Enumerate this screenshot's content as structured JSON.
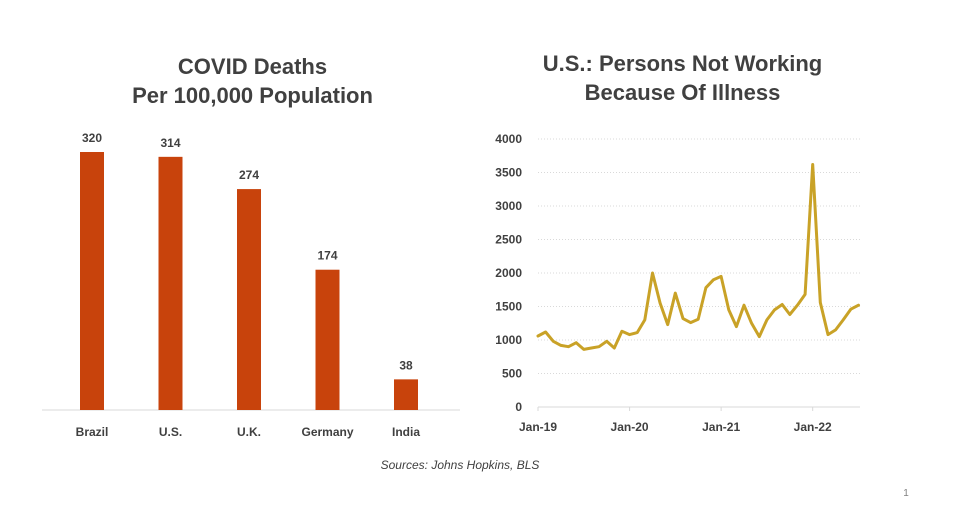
{
  "chart_data": [
    {
      "type": "bar",
      "title": "COVID Deaths Per 100,000 Population",
      "title_lines": [
        "COVID Deaths",
        "Per 100,000 Population"
      ],
      "categories": [
        "Brazil",
        "U.S.",
        "U.K.",
        "Germany",
        "India"
      ],
      "values": [
        320,
        314,
        274,
        174,
        38
      ],
      "data_labels": [
        "320",
        "314",
        "274",
        "174",
        "38"
      ],
      "xlabel": "",
      "ylabel": "",
      "ylim": [
        0,
        320
      ],
      "grid": false,
      "color": "#C8430C"
    },
    {
      "type": "line",
      "title": "U.S.: Persons Not Working Because Of Illness",
      "title_lines": [
        "U.S.: Persons Not Working",
        "Because Of Illness"
      ],
      "x": [
        "Jan-19",
        "Feb-19",
        "Mar-19",
        "Apr-19",
        "May-19",
        "Jun-19",
        "Jul-19",
        "Aug-19",
        "Sep-19",
        "Oct-19",
        "Nov-19",
        "Dec-19",
        "Jan-20",
        "Feb-20",
        "Mar-20",
        "Apr-20",
        "May-20",
        "Jun-20",
        "Jul-20",
        "Aug-20",
        "Sep-20",
        "Oct-20",
        "Nov-20",
        "Dec-20",
        "Jan-21",
        "Feb-21",
        "Mar-21",
        "Apr-21",
        "May-21",
        "Jun-21",
        "Jul-21",
        "Aug-21",
        "Sep-21",
        "Oct-21",
        "Nov-21",
        "Dec-21",
        "Jan-22",
        "Feb-22",
        "Mar-22",
        "Apr-22",
        "May-22",
        "Jun-22",
        "Jul-22"
      ],
      "series": [
        {
          "name": "Persons not working because of illness",
          "values": [
            1060,
            1120,
            980,
            920,
            900,
            960,
            860,
            880,
            900,
            980,
            880,
            1130,
            1080,
            1110,
            1300,
            2000,
            1550,
            1230,
            1700,
            1320,
            1260,
            1310,
            1780,
            1900,
            1950,
            1450,
            1200,
            1520,
            1250,
            1050,
            1300,
            1450,
            1530,
            1380,
            1520,
            1680,
            3620,
            1560,
            1080,
            1150,
            1300,
            1460,
            1520
          ]
        }
      ],
      "x_ticks": [
        "Jan-19",
        "Jan-20",
        "Jan-21",
        "Jan-22"
      ],
      "y_ticks": [
        "0",
        "500",
        "1000",
        "1500",
        "2000",
        "2500",
        "3000",
        "3500",
        "4000"
      ],
      "xlabel": "",
      "ylabel": "",
      "ylim": [
        0,
        4000
      ],
      "grid": true,
      "color": "#C9A227"
    }
  ],
  "footer": {
    "source": "Sources: Johns Hopkins, BLS",
    "page_number": "1"
  }
}
